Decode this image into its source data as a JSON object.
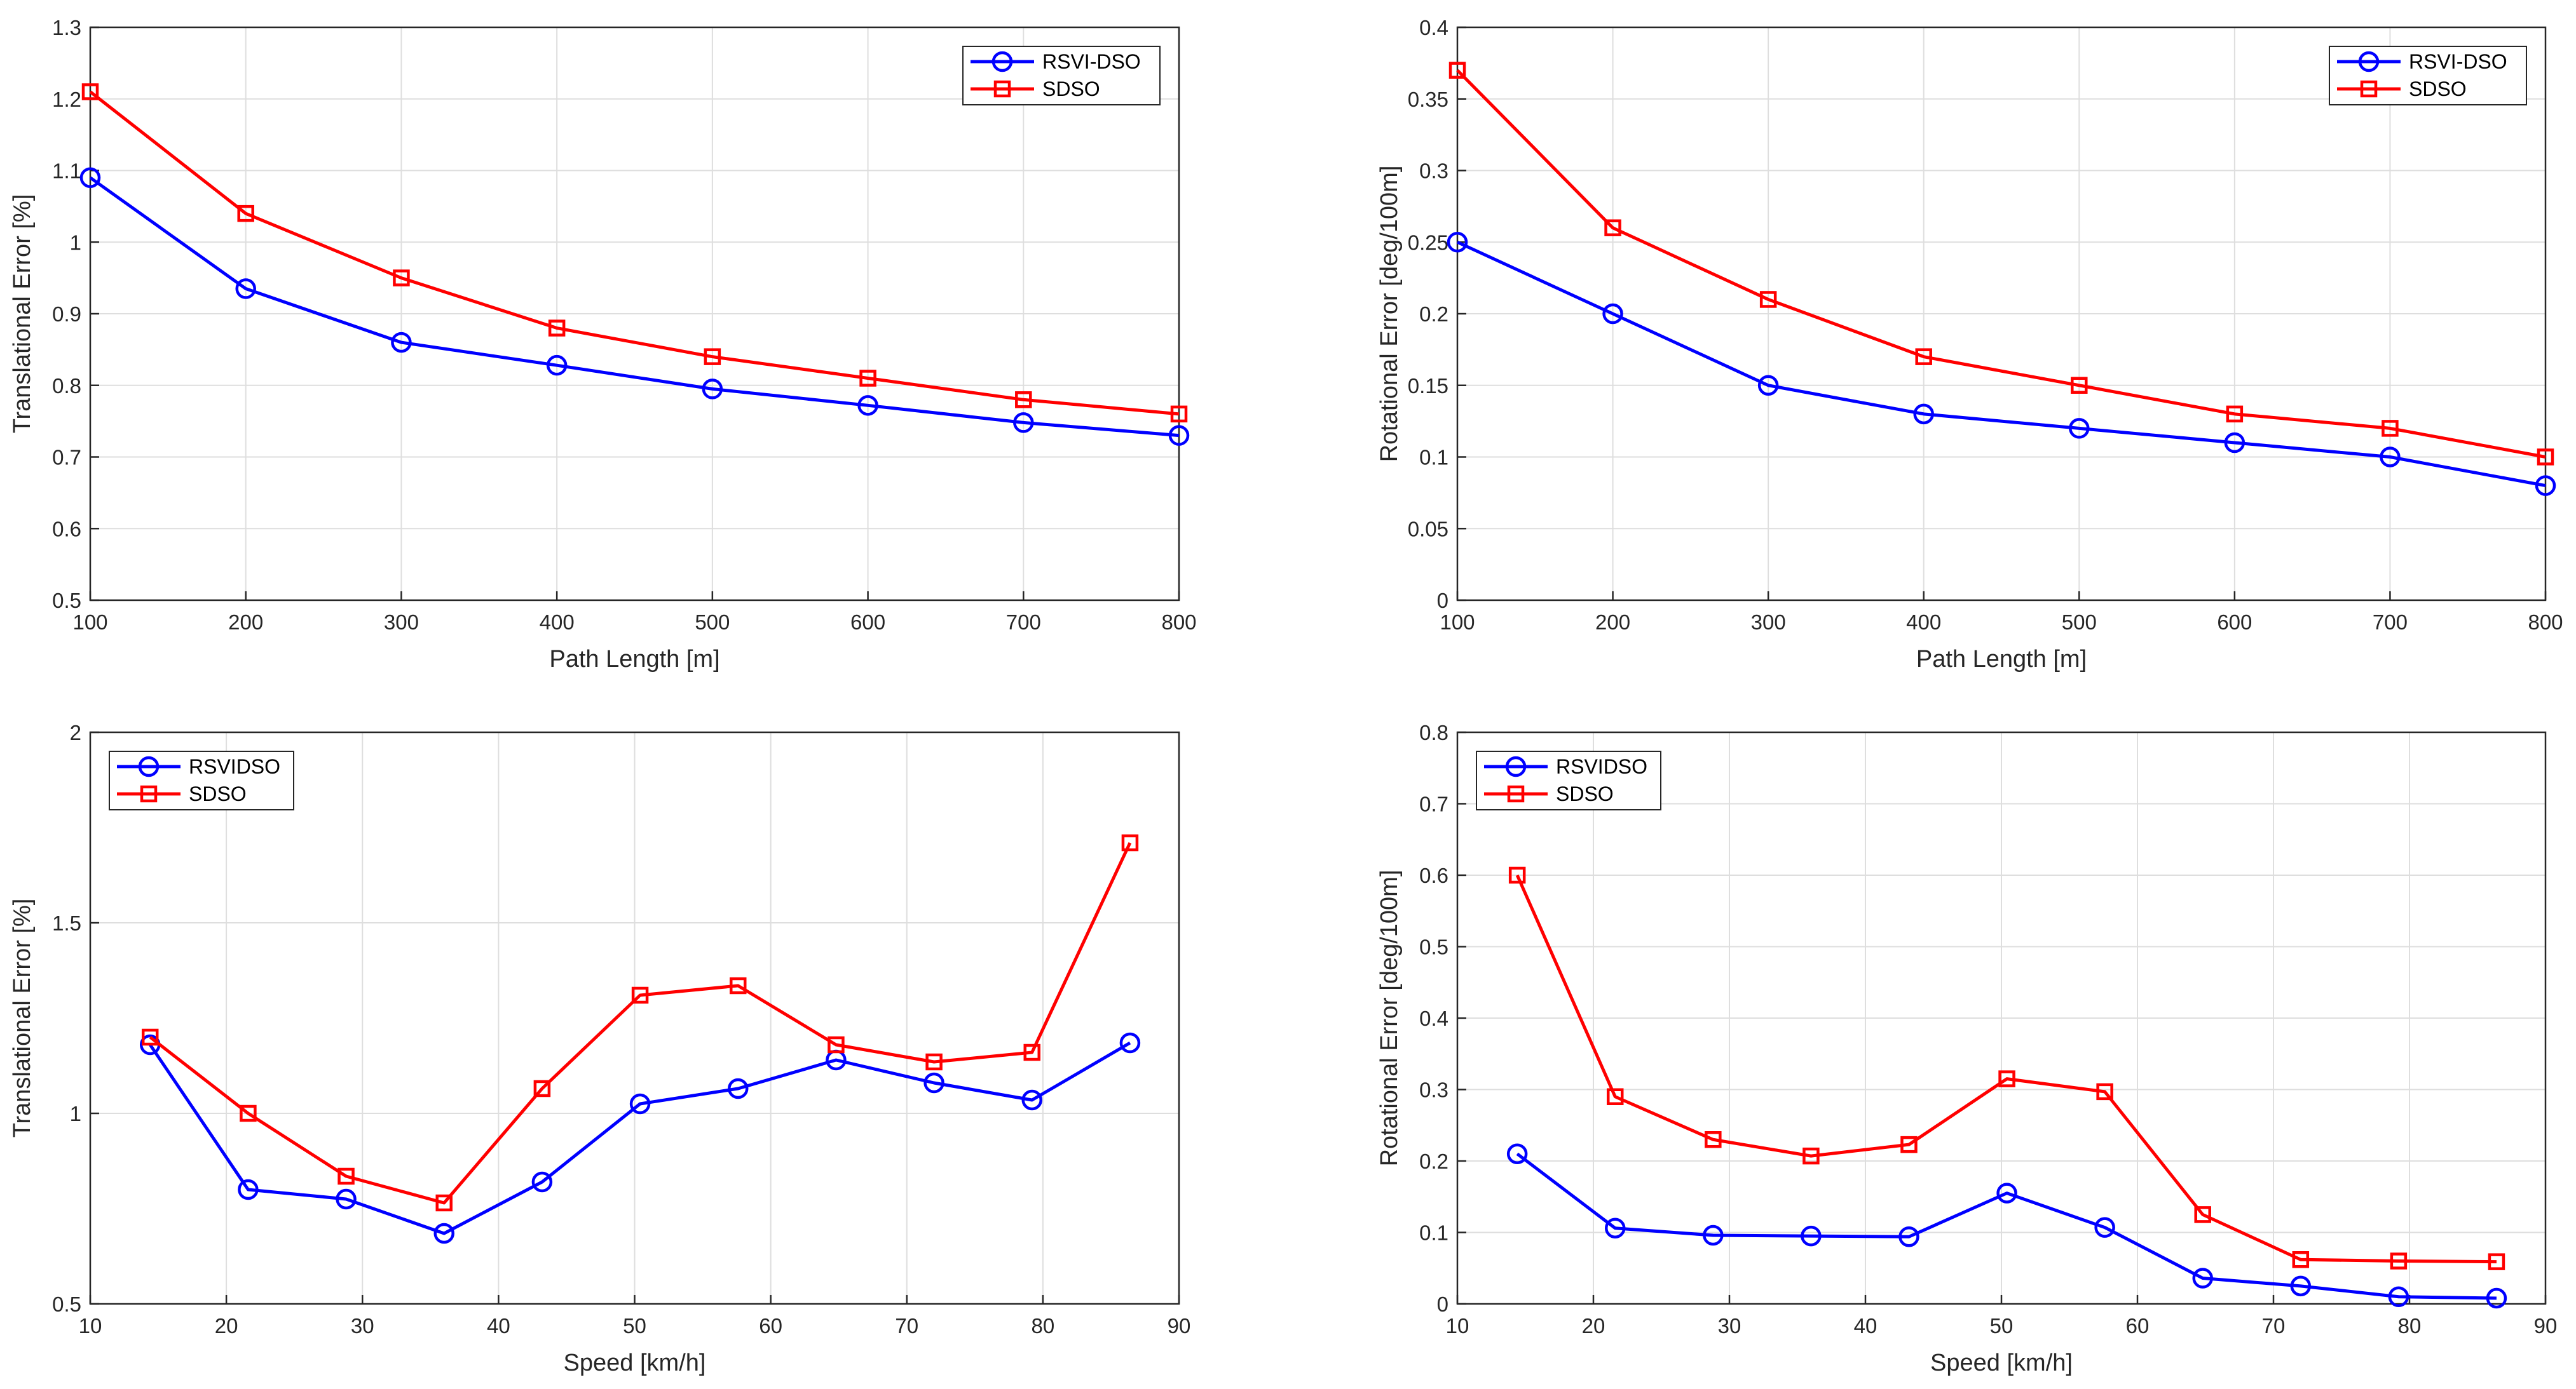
{
  "colors": {
    "blue": "#0000ff",
    "red": "#ff0000",
    "grid": "#dedede",
    "axis": "#262626"
  },
  "chart_data": [
    {
      "type": "line",
      "xlabel": "Path Length [m]",
      "ylabel": "Translational Error [%]",
      "xlim": [
        100,
        800
      ],
      "ylim": [
        0.5,
        1.3
      ],
      "xticks": [
        100,
        200,
        300,
        400,
        500,
        600,
        700,
        800
      ],
      "yticks": [
        0.5,
        0.6,
        0.7,
        0.8,
        0.9,
        1,
        1.1,
        1.2,
        1.3
      ],
      "grid": true,
      "legend_position": "top-right",
      "x": [
        100,
        200,
        300,
        400,
        500,
        600,
        700,
        800
      ],
      "series": [
        {
          "name": "RSVI-DSO",
          "color": "blue",
          "marker": "circle",
          "values": [
            1.09,
            0.935,
            0.86,
            0.828,
            0.795,
            0.772,
            0.748,
            0.73
          ]
        },
        {
          "name": "SDSO",
          "color": "red",
          "marker": "square",
          "values": [
            1.21,
            1.04,
            0.95,
            0.88,
            0.84,
            0.81,
            0.78,
            0.76
          ]
        }
      ]
    },
    {
      "type": "line",
      "xlabel": "Path Length [m]",
      "ylabel": "Rotational Error [deg/100m]",
      "xlim": [
        100,
        800
      ],
      "ylim": [
        0,
        0.4
      ],
      "xticks": [
        100,
        200,
        300,
        400,
        500,
        600,
        700,
        800
      ],
      "yticks": [
        0,
        0.05,
        0.1,
        0.15,
        0.2,
        0.25,
        0.3,
        0.35,
        0.4
      ],
      "grid": true,
      "legend_position": "top-right",
      "x": [
        100,
        200,
        300,
        400,
        500,
        600,
        700,
        800
      ],
      "series": [
        {
          "name": "RSVI-DSO",
          "color": "blue",
          "marker": "circle",
          "values": [
            0.25,
            0.2,
            0.15,
            0.13,
            0.12,
            0.11,
            0.1,
            0.08
          ]
        },
        {
          "name": "SDSO",
          "color": "red",
          "marker": "square",
          "values": [
            0.37,
            0.26,
            0.21,
            0.17,
            0.15,
            0.13,
            0.12,
            0.1
          ]
        }
      ]
    },
    {
      "type": "line",
      "xlabel": "Speed [km/h]",
      "ylabel": "Translational Error [%]",
      "xlim": [
        10,
        90
      ],
      "ylim": [
        0.5,
        2
      ],
      "xticks": [
        10,
        20,
        30,
        40,
        50,
        60,
        70,
        80,
        90
      ],
      "yticks": [
        0.5,
        1,
        1.5,
        2
      ],
      "grid": true,
      "legend_position": "top-left",
      "x": [
        14.4,
        21.6,
        28.8,
        36,
        43.2,
        50.4,
        57.6,
        64.8,
        72,
        79.2,
        86.4
      ],
      "series": [
        {
          "name": "RSVIDSO",
          "color": "blue",
          "marker": "circle",
          "values": [
            1.18,
            0.8,
            0.775,
            0.685,
            0.82,
            1.025,
            1.065,
            1.14,
            1.08,
            1.035,
            1.185
          ]
        },
        {
          "name": "SDSO",
          "color": "red",
          "marker": "square",
          "values": [
            1.2,
            1.0,
            0.835,
            0.765,
            1.065,
            1.31,
            1.335,
            1.18,
            1.135,
            1.16,
            1.71
          ]
        }
      ]
    },
    {
      "type": "line",
      "xlabel": "Speed [km/h]",
      "ylabel": "Rotational Error [deg/100m]",
      "xlim": [
        10,
        90
      ],
      "ylim": [
        0,
        0.8
      ],
      "xticks": [
        10,
        20,
        30,
        40,
        50,
        60,
        70,
        80,
        90
      ],
      "yticks": [
        0,
        0.1,
        0.2,
        0.3,
        0.4,
        0.5,
        0.6,
        0.7,
        0.8
      ],
      "grid": true,
      "legend_position": "top-left",
      "x": [
        14.4,
        21.6,
        28.8,
        36,
        43.2,
        50.4,
        57.6,
        64.8,
        72,
        79.2,
        86.4
      ],
      "series": [
        {
          "name": "RSVIDSO",
          "color": "blue",
          "marker": "circle",
          "values": [
            0.21,
            0.106,
            0.096,
            0.095,
            0.094,
            0.155,
            0.107,
            0.036,
            0.025,
            0.01,
            0.008
          ]
        },
        {
          "name": "SDSO",
          "color": "red",
          "marker": "square",
          "values": [
            0.6,
            0.29,
            0.23,
            0.207,
            0.223,
            0.315,
            0.297,
            0.125,
            0.062,
            0.06,
            0.059
          ]
        }
      ]
    }
  ]
}
